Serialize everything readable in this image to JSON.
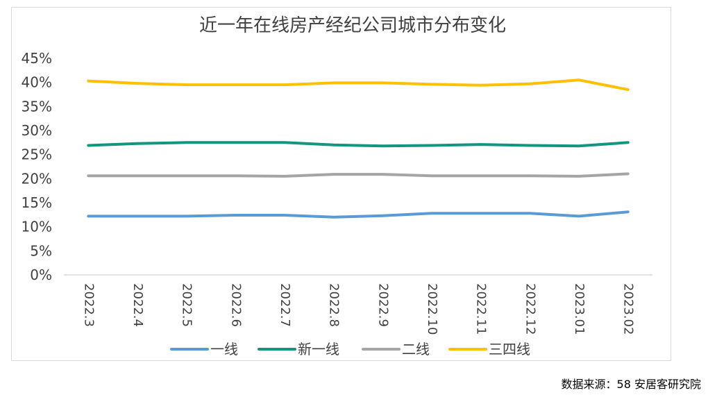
{
  "source_note": "数据来源：58 安居客研究院",
  "chart_data": {
    "type": "line",
    "title": "近一年在线房产经纪公司城市分布变化",
    "xlabel": "",
    "ylabel": "",
    "ylim": [
      0,
      45
    ],
    "y_ticks": [
      "0%",
      "5%",
      "10%",
      "15%",
      "20%",
      "25%",
      "30%",
      "35%",
      "40%",
      "45%"
    ],
    "grid": false,
    "legend_position": "bottom",
    "categories": [
      "2022.3",
      "2022.4",
      "2022.5",
      "2022.6",
      "2022.7",
      "2022.8",
      "2022.9",
      "2022.10",
      "2022.11",
      "2022.12",
      "2023.01",
      "2023.02"
    ],
    "series": [
      {
        "name": "一线",
        "color": "#5b9bd5",
        "values": [
          12.2,
          12.2,
          12.2,
          12.4,
          12.4,
          12.0,
          12.3,
          12.8,
          12.8,
          12.8,
          12.2,
          13.1
        ]
      },
      {
        "name": "新一线",
        "color": "#12967f",
        "values": [
          26.9,
          27.3,
          27.5,
          27.5,
          27.5,
          27.0,
          26.8,
          26.9,
          27.1,
          26.9,
          26.8,
          27.5
        ]
      },
      {
        "name": "二线",
        "color": "#a5a5a5",
        "values": [
          20.6,
          20.6,
          20.6,
          20.6,
          20.5,
          20.9,
          20.9,
          20.6,
          20.6,
          20.6,
          20.5,
          21.0
        ]
      },
      {
        "name": "三四线",
        "color": "#ffc000",
        "values": [
          40.3,
          39.8,
          39.5,
          39.5,
          39.5,
          39.9,
          39.9,
          39.6,
          39.4,
          39.7,
          40.5,
          38.5
        ]
      }
    ]
  }
}
